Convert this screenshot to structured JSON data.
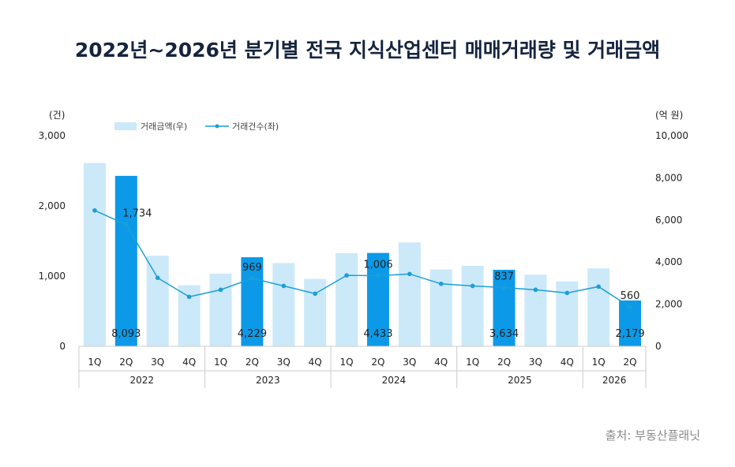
{
  "chart_data": {
    "type": "bar",
    "title": "2022년~2026년 분기별 전국 지식산업센터 매매거래량 및 거래금액",
    "source": "출처: 부동산플래닛",
    "left_axis_unit": "(건)",
    "right_axis_unit": "(억 원)",
    "left_ylim": [
      0,
      3000
    ],
    "left_ticks": [
      "0",
      "1,000",
      "2,000",
      "3,000"
    ],
    "right_ylim": [
      0,
      10000
    ],
    "right_ticks": [
      "0",
      "2,000",
      "4,000",
      "6,000",
      "8,000",
      "10,000"
    ],
    "quarters": [
      "1Q",
      "2Q",
      "3Q",
      "4Q",
      "1Q",
      "2Q",
      "3Q",
      "4Q",
      "1Q",
      "2Q",
      "3Q",
      "4Q",
      "1Q",
      "2Q",
      "3Q",
      "4Q",
      "1Q",
      "2Q"
    ],
    "years": [
      {
        "label": "2022",
        "count": 4
      },
      {
        "label": "2023",
        "count": 4
      },
      {
        "label": "2024",
        "count": 4
      },
      {
        "label": "2025",
        "count": 4
      },
      {
        "label": "2026",
        "count": 2
      }
    ],
    "legend": {
      "bars": "거래금액(우)",
      "line": "거래건수(좌)"
    },
    "highlight_indices": [
      1,
      5,
      9,
      13,
      17
    ],
    "amount_values": [
      8700,
      8093,
      4300,
      2900,
      3450,
      4229,
      3950,
      3200,
      4420,
      4433,
      4930,
      3650,
      3820,
      3634,
      3400,
      3080,
      3700,
      2179
    ],
    "amount_labels": [
      "",
      "8,093",
      "",
      "",
      "",
      "4,229",
      "",
      "",
      "",
      "4,433",
      "",
      "",
      "",
      "3,634",
      "",
      "",
      "",
      "2,179"
    ],
    "count_values": [
      1935,
      1734,
      975,
      705,
      805,
      969,
      860,
      750,
      1010,
      1006,
      1030,
      890,
      860,
      837,
      805,
      760,
      850,
      560
    ],
    "count_labels": [
      "",
      "1,734",
      "",
      "",
      "",
      "969",
      "",
      "",
      "",
      "1,006",
      "",
      "",
      "",
      "837",
      "",
      "",
      "",
      "560"
    ],
    "colors": {
      "bar_light": "#cbe9f9",
      "bar_dark": "#0c9ae8",
      "line": "#1c9fd6",
      "axis": "#cccccc",
      "text": "#222222"
    }
  }
}
